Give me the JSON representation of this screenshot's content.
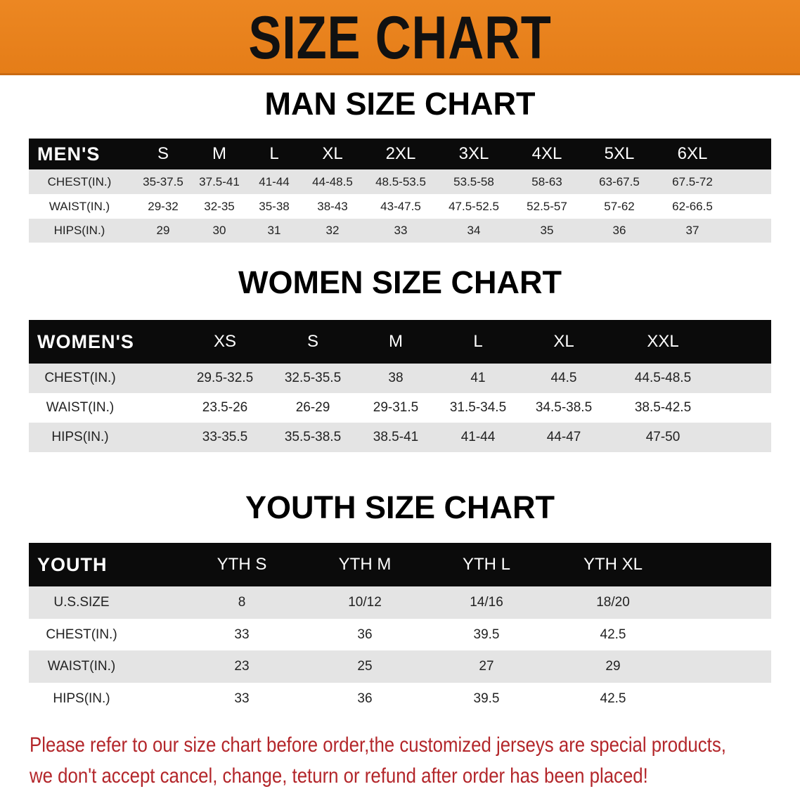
{
  "banner": {
    "title": "SIZE CHART",
    "color": "#e8821e"
  },
  "men": {
    "title": "MAN SIZE CHART",
    "header": [
      "MEN'S",
      "S",
      "M",
      "L",
      "XL",
      "2XL",
      "3XL",
      "4XL",
      "5XL",
      "6XL"
    ],
    "rows": [
      [
        "CHEST(IN.)",
        "35-37.5",
        "37.5-41",
        "41-44",
        "44-48.5",
        "48.5-53.5",
        "53.5-58",
        "58-63",
        "63-67.5",
        "67.5-72"
      ],
      [
        "WAIST(IN.)",
        "29-32",
        "32-35",
        "35-38",
        "38-43",
        "43-47.5",
        "47.5-52.5",
        "52.5-57",
        "57-62",
        "62-66.5"
      ],
      [
        "HIPS(IN.)",
        "29",
        "30",
        "31",
        "32",
        "33",
        "34",
        "35",
        "36",
        "37"
      ]
    ]
  },
  "women": {
    "title": "WOMEN SIZE CHART",
    "header": [
      "WOMEN'S",
      "XS",
      "S",
      "M",
      "L",
      "XL",
      "XXL"
    ],
    "rows": [
      [
        "CHEST(IN.)",
        "29.5-32.5",
        "32.5-35.5",
        "38",
        "41",
        "44.5",
        "44.5-48.5"
      ],
      [
        "WAIST(IN.)",
        "23.5-26",
        "26-29",
        "29-31.5",
        "31.5-34.5",
        "34.5-38.5",
        "38.5-42.5"
      ],
      [
        "HIPS(IN.)",
        "33-35.5",
        "35.5-38.5",
        "38.5-41",
        "41-44",
        "44-47",
        "47-50"
      ]
    ]
  },
  "youth": {
    "title": "YOUTH SIZE CHART",
    "header": [
      "YOUTH",
      "YTH S",
      "YTH M",
      "YTH L",
      "YTH XL"
    ],
    "rows": [
      [
        "U.S.SIZE",
        "8",
        "10/12",
        "14/16",
        "18/20"
      ],
      [
        "CHEST(IN.)",
        "33",
        "36",
        "39.5",
        "42.5"
      ],
      [
        "WAIST(IN.)",
        "23",
        "25",
        "27",
        "29"
      ],
      [
        "HIPS(IN.)",
        "33",
        "36",
        "39.5",
        "42.5"
      ]
    ]
  },
  "notice": {
    "line1": "Please refer to our size chart before order,the customized jerseys are special products,",
    "line2": "we don't accept cancel, change, teturn or refund after order has been placed!",
    "color": "#b3262a"
  }
}
